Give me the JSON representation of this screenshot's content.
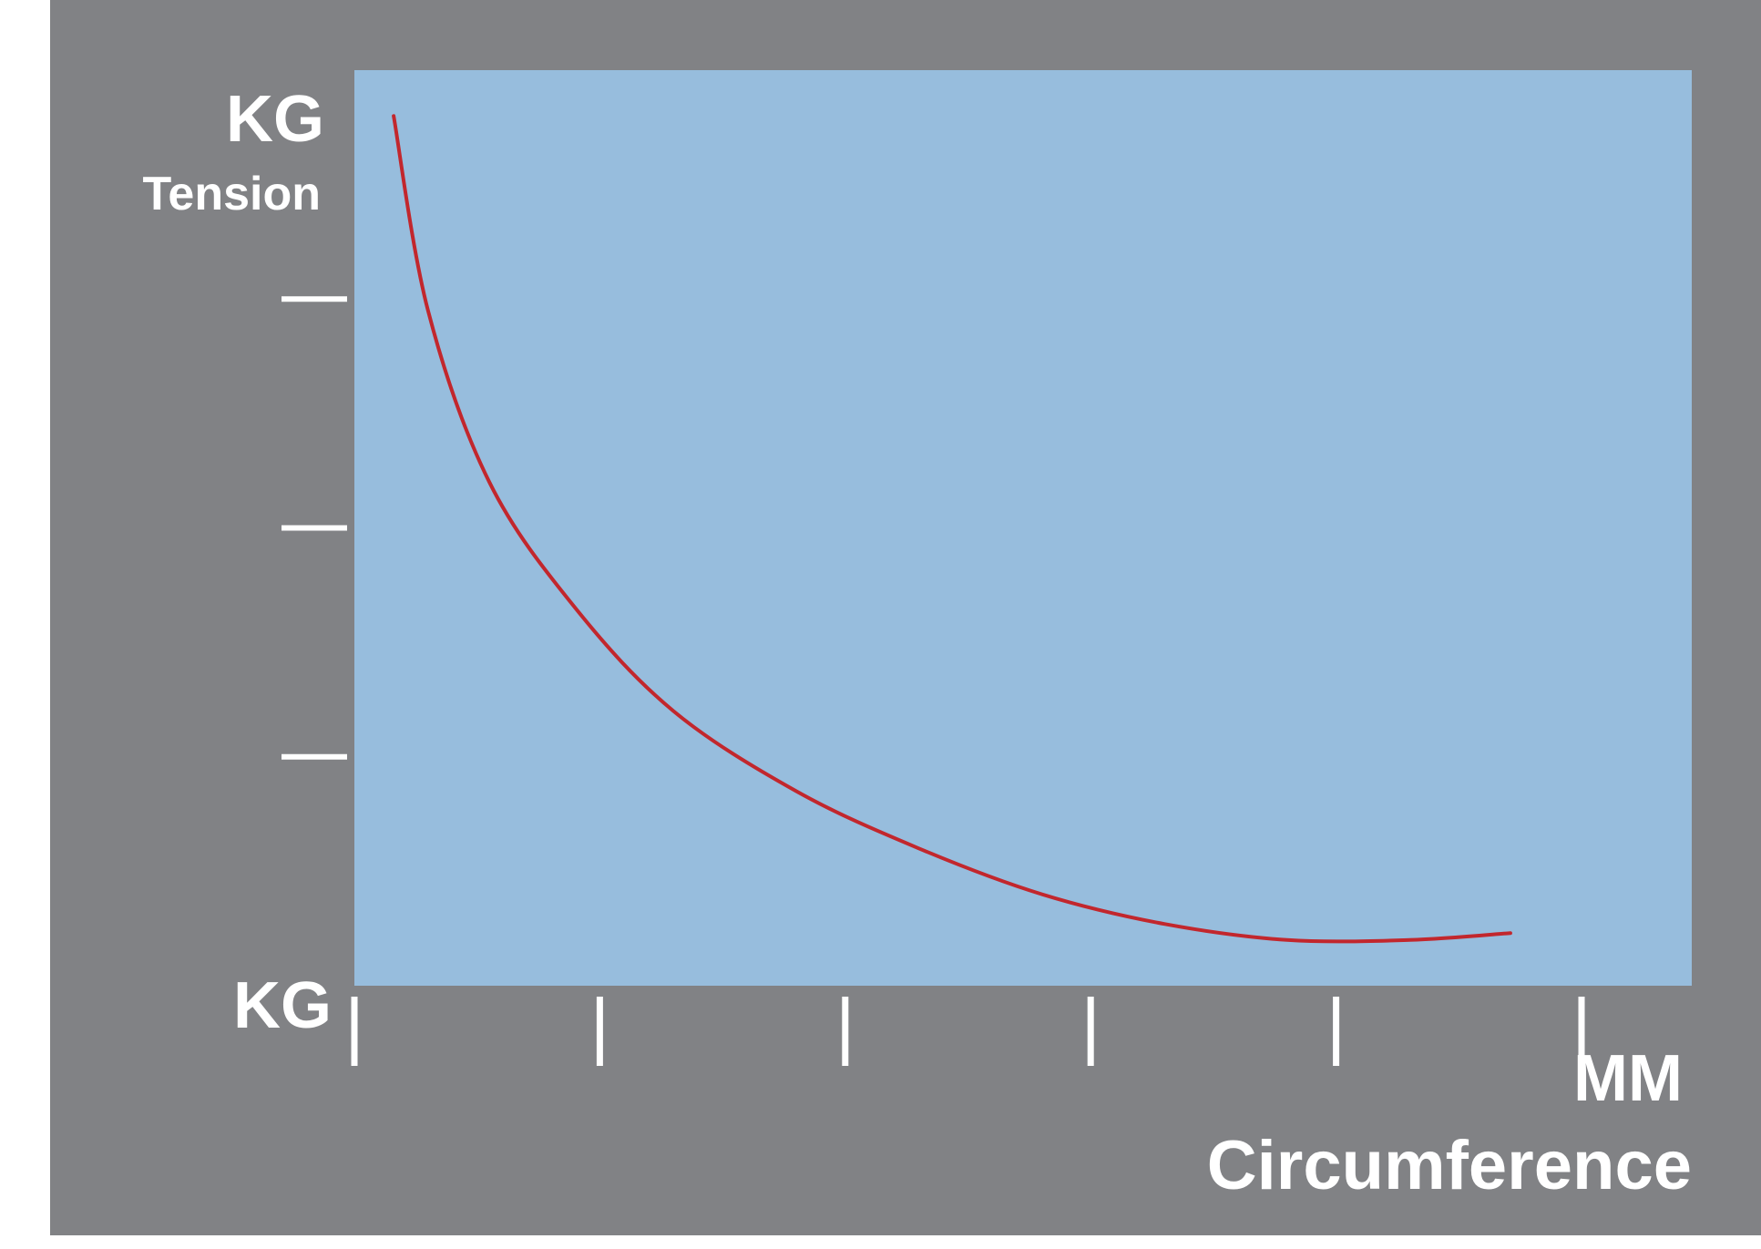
{
  "chart_data": {
    "type": "line",
    "title": "",
    "ylabel": "Tension",
    "y_unit_top": "KG",
    "y_unit_bottom": "KG",
    "xlabel": "Circumference",
    "x_unit": "MM",
    "xlim": [
      0,
      5
    ],
    "ylim": [
      0,
      4
    ],
    "x_ticks": [
      0,
      1,
      2,
      3,
      4,
      5
    ],
    "y_ticks": [
      1,
      2,
      3
    ],
    "grid": false,
    "legend": "none",
    "series": [
      {
        "x": [
          0.16,
          0.3,
          0.55,
          0.9,
          1.3,
          1.8,
          2.3,
          2.8,
          3.3,
          3.8,
          4.3,
          4.71
        ],
        "y": [
          3.8,
          2.95,
          2.2,
          1.65,
          1.2,
          0.85,
          0.6,
          0.4,
          0.27,
          0.2,
          0.2,
          0.23
        ]
      }
    ],
    "colors": {
      "frame": "#ffffff",
      "panel": "#818285",
      "plot_area": "#97bddd",
      "curve": "#c2272d",
      "ticks": "#ffffff"
    }
  }
}
